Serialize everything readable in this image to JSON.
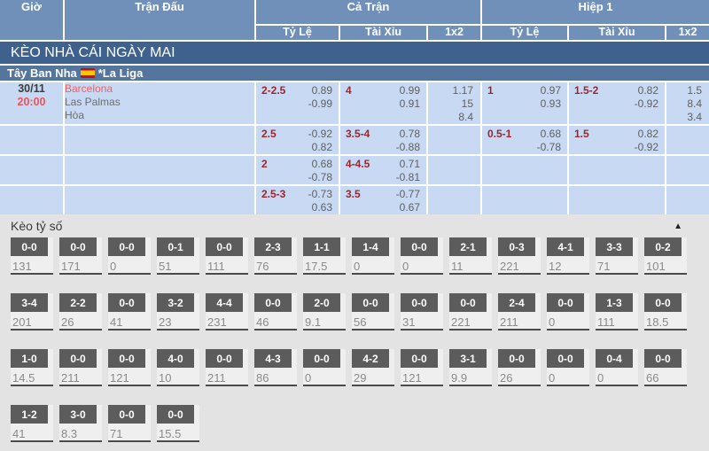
{
  "header": {
    "time": "Giờ",
    "match": "Trận Đấu",
    "full_match": "Cả Trận",
    "first_half": "Hiệp 1",
    "handicap": "Tỷ Lệ",
    "over_under": "Tài Xỉu",
    "one_x_two": "1x2"
  },
  "banner": {
    "title": "KÈO NHÀ CÁI NGÀY MAI"
  },
  "league": {
    "country": "Tây Ban Nha",
    "name": "*La Liga",
    "flag": "spain-flag"
  },
  "odds_rows": [
    {
      "time": [
        "30/11",
        "20:00"
      ],
      "teams": [
        "Barcelona",
        "Las Palmas",
        "Hòa"
      ],
      "ft_hdp": {
        "label": "2-2.5",
        "odds": [
          "0.89",
          "-0.99"
        ]
      },
      "ft_ou": {
        "label": "4",
        "odds": [
          "0.99",
          "0.91"
        ]
      },
      "ft_1x2": [
        "1.17",
        "15",
        "8.4"
      ],
      "h1_hdp": {
        "label": "1",
        "odds": [
          "0.97",
          "0.93"
        ]
      },
      "h1_ou": {
        "label": "1.5-2",
        "odds": [
          "0.82",
          "-0.92"
        ]
      },
      "h1_1x2": [
        "1.5",
        "8.4",
        "3.4"
      ]
    },
    {
      "time": [],
      "teams": [],
      "ft_hdp": {
        "label": "2.5",
        "odds": [
          "-0.92",
          "0.82"
        ]
      },
      "ft_ou": {
        "label": "3.5-4",
        "odds": [
          "0.78",
          "-0.88"
        ]
      },
      "ft_1x2": [],
      "h1_hdp": {
        "label": "0.5-1",
        "odds": [
          "0.68",
          "-0.78"
        ]
      },
      "h1_ou": {
        "label": "1.5",
        "odds": [
          "0.82",
          "-0.92"
        ]
      },
      "h1_1x2": []
    },
    {
      "time": [],
      "teams": [],
      "ft_hdp": {
        "label": "2",
        "odds": [
          "0.68",
          "-0.78"
        ]
      },
      "ft_ou": {
        "label": "4-4.5",
        "odds": [
          "0.71",
          "-0.81"
        ]
      },
      "ft_1x2": [],
      "h1_hdp": null,
      "h1_ou": null,
      "h1_1x2": []
    },
    {
      "time": [],
      "teams": [],
      "ft_hdp": {
        "label": "2.5-3",
        "odds": [
          "-0.73",
          "0.63"
        ]
      },
      "ft_ou": {
        "label": "3.5",
        "odds": [
          "-0.77",
          "0.67"
        ]
      },
      "ft_1x2": [],
      "h1_hdp": null,
      "h1_ou": null,
      "h1_1x2": []
    }
  ],
  "score_section": {
    "title": "Kèo tỷ số",
    "collapse_icon": "▲",
    "rows": [
      [
        {
          "s": "0-0",
          "v": "131"
        },
        {
          "s": "0-0",
          "v": "171"
        },
        {
          "s": "0-0",
          "v": "0"
        },
        {
          "s": "0-1",
          "v": "51"
        },
        {
          "s": "0-0",
          "v": "111"
        },
        {
          "s": "2-3",
          "v": "76"
        },
        {
          "s": "1-1",
          "v": "17.5"
        },
        {
          "s": "1-4",
          "v": "0"
        },
        {
          "s": "0-0",
          "v": "0"
        },
        {
          "s": "2-1",
          "v": "11"
        },
        {
          "s": "0-3",
          "v": "221"
        },
        {
          "s": "4-1",
          "v": "12"
        },
        {
          "s": "3-3",
          "v": "71"
        },
        {
          "s": "0-2",
          "v": "101"
        }
      ],
      [
        {
          "s": "3-4",
          "v": "201"
        },
        {
          "s": "2-2",
          "v": "26"
        },
        {
          "s": "0-0",
          "v": "41"
        },
        {
          "s": "3-2",
          "v": "23"
        },
        {
          "s": "4-4",
          "v": "231"
        },
        {
          "s": "0-0",
          "v": "46"
        },
        {
          "s": "2-0",
          "v": "9.1"
        },
        {
          "s": "0-0",
          "v": "56"
        },
        {
          "s": "0-0",
          "v": "31"
        },
        {
          "s": "0-0",
          "v": "221"
        },
        {
          "s": "2-4",
          "v": "211"
        },
        {
          "s": "0-0",
          "v": "0"
        },
        {
          "s": "1-3",
          "v": "111"
        },
        {
          "s": "0-0",
          "v": "18.5"
        }
      ],
      [
        {
          "s": "1-0",
          "v": "14.5"
        },
        {
          "s": "0-0",
          "v": "211"
        },
        {
          "s": "0-0",
          "v": "121"
        },
        {
          "s": "4-0",
          "v": "10"
        },
        {
          "s": "0-0",
          "v": "211"
        },
        {
          "s": "4-3",
          "v": "86"
        },
        {
          "s": "0-0",
          "v": "0"
        },
        {
          "s": "4-2",
          "v": "29"
        },
        {
          "s": "0-0",
          "v": "121"
        },
        {
          "s": "3-1",
          "v": "9.9"
        },
        {
          "s": "0-0",
          "v": "26"
        },
        {
          "s": "0-0",
          "v": "0"
        },
        {
          "s": "0-4",
          "v": "0"
        },
        {
          "s": "0-0",
          "v": "66"
        }
      ],
      [
        {
          "s": "1-2",
          "v": "41"
        },
        {
          "s": "3-0",
          "v": "8.3"
        },
        {
          "s": "0-0",
          "v": "71"
        },
        {
          "s": "0-0",
          "v": "15.5"
        }
      ]
    ]
  },
  "colors": {
    "header_blue": "#7090ba",
    "banner_blue": "#3f618e",
    "league_blue": "#54769e",
    "row_light_blue": "#c7d9f3",
    "handicap_red": "#9c262c",
    "team_red": "#ee6167",
    "time_red": "#f2505a",
    "odds_gray": "#5f5f5f",
    "score_button_gray": "#5c5c5c",
    "section_bg": "#e3e3e3"
  }
}
